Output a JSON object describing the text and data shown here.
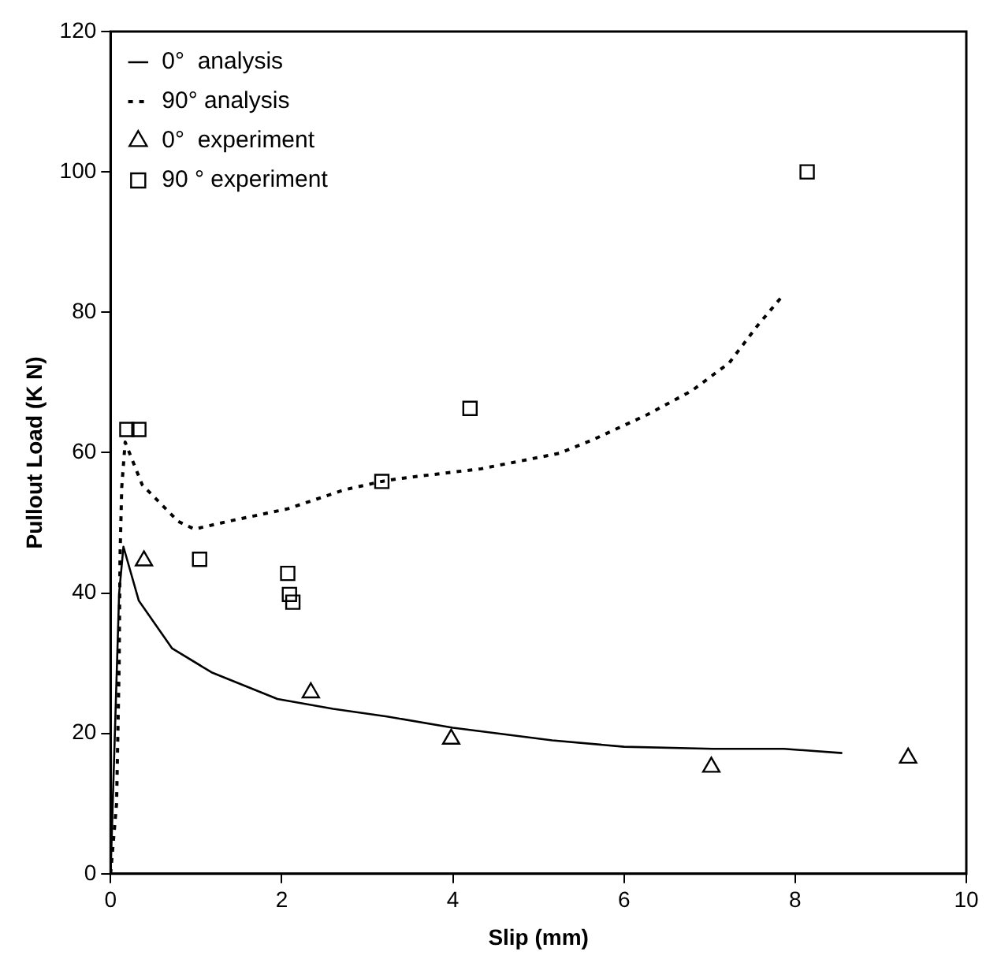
{
  "chart_data": {
    "type": "line",
    "xlabel": "Slip (mm)",
    "ylabel": "Pullout Load (K N)",
    "xlim": [
      0,
      10
    ],
    "xticks": [
      0,
      2,
      4,
      6,
      8,
      10
    ],
    "ylim": [
      0,
      120
    ],
    "yticks": [
      0,
      20,
      40,
      60,
      80,
      100,
      120
    ],
    "grid": false,
    "legend": "top left",
    "series": [
      {
        "name": "0°  analysis",
        "line_style": "solid",
        "marker": "none",
        "color": "#000000",
        "x": [
          0,
          0.05,
          0.1,
          0.15,
          0.33,
          0.72,
          1.18,
          1.95,
          2.6,
          3.23,
          4.0,
          5.16,
          6.0,
          7.04,
          7.87,
          8.55
        ],
        "values": [
          0,
          20,
          40,
          46.6,
          38.9,
          32.1,
          28.7,
          24.9,
          23.5,
          22.4,
          20.8,
          19.0,
          18.1,
          17.8,
          17.8,
          17.2
        ]
      },
      {
        "name": "90° analysis",
        "line_style": "dotted",
        "marker": "none",
        "color": "#000000",
        "x": [
          0,
          0.07,
          0.1,
          0.11,
          0.13,
          0.17,
          0.37,
          0.79,
          0.98,
          1.37,
          2.07,
          2.73,
          3.17,
          3.37,
          4.33,
          5.24,
          5.63,
          6.27,
          6.79,
          7.23,
          7.56,
          7.85
        ],
        "values": [
          0,
          10,
          30,
          45,
          55,
          61.5,
          55.4,
          50.2,
          49.1,
          50.2,
          52.0,
          54.7,
          55.9,
          56.3,
          57.7,
          59.9,
          61.8,
          65.4,
          68.8,
          72.8,
          78.1,
          82.3
        ]
      },
      {
        "name": "0°  experiment",
        "type": "scatter",
        "marker": "triangle",
        "color": "#000000",
        "x": [
          0.39,
          2.34,
          3.98,
          7.02,
          9.32
        ],
        "values": [
          44.6,
          25.8,
          19.2,
          15.2,
          16.5
        ]
      },
      {
        "name": "90 ° experiment",
        "type": "scatter",
        "marker": "square",
        "color": "#000000",
        "x": [
          0.19,
          0.33,
          1.04,
          2.07,
          2.09,
          2.13,
          3.17,
          4.2,
          8.14
        ],
        "values": [
          63.3,
          63.3,
          44.8,
          42.8,
          39.8,
          38.7,
          55.9,
          66.3,
          100
        ]
      }
    ]
  }
}
